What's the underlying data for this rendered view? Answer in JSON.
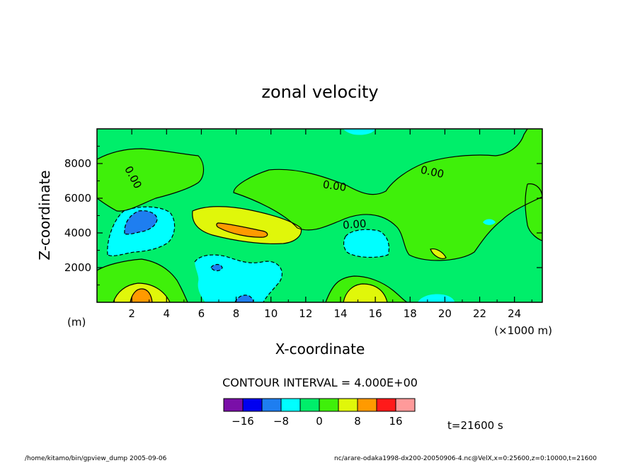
{
  "chart_data": {
    "type": "contour",
    "title": "zonal velocity",
    "xlabel": "X-coordinate",
    "ylabel": "Z-coordinate",
    "x_unit_label": "(m)",
    "x_scale_label": "(×1000 m)",
    "xlim": [
      0,
      25.6
    ],
    "ylim": [
      0,
      10000
    ],
    "x_ticks": [
      "2",
      "4",
      "6",
      "8",
      "10",
      "12",
      "14",
      "16",
      "18",
      "20",
      "22",
      "24"
    ],
    "y_ticks": [
      "2000",
      "4000",
      "6000",
      "8000"
    ],
    "contour_labels": [
      "0.00",
      "0.00",
      "0.00",
      "0.00"
    ],
    "contour_interval_text": "CONTOUR INTERVAL = 4.000E+00",
    "time_text": "t=21600 s",
    "colorbar": {
      "colors": [
        "#7a0fa8",
        "#0000f0",
        "#1e7ef0",
        "#00ffff",
        "#00ee6a",
        "#3ff00a",
        "#e0f70a",
        "#ff9a00",
        "#ff1a1a",
        "#ff9a9a"
      ],
      "tick_labels": [
        "−16",
        "−8",
        "0",
        "8",
        "16"
      ]
    },
    "features": [
      {
        "kind": "min",
        "x": 2.6,
        "z": 4200,
        "value": "-12"
      },
      {
        "kind": "max",
        "x": 9.5,
        "z": 4200,
        "value": "12"
      },
      {
        "kind": "max",
        "x": 2.7,
        "z": 300,
        "value": "12"
      },
      {
        "kind": "min",
        "x": 15.3,
        "z": 3400,
        "value": "-4"
      },
      {
        "kind": "max",
        "x": 15.4,
        "z": 500,
        "value": "8"
      }
    ]
  },
  "footer": {
    "left": "/home/kitamo/bin/gpview_dump   2005-09-06",
    "right": "nc/arare-odaka1998-dx200-20050906-4.nc@VelX,x=0:25600,z=0:10000,t=21600"
  }
}
